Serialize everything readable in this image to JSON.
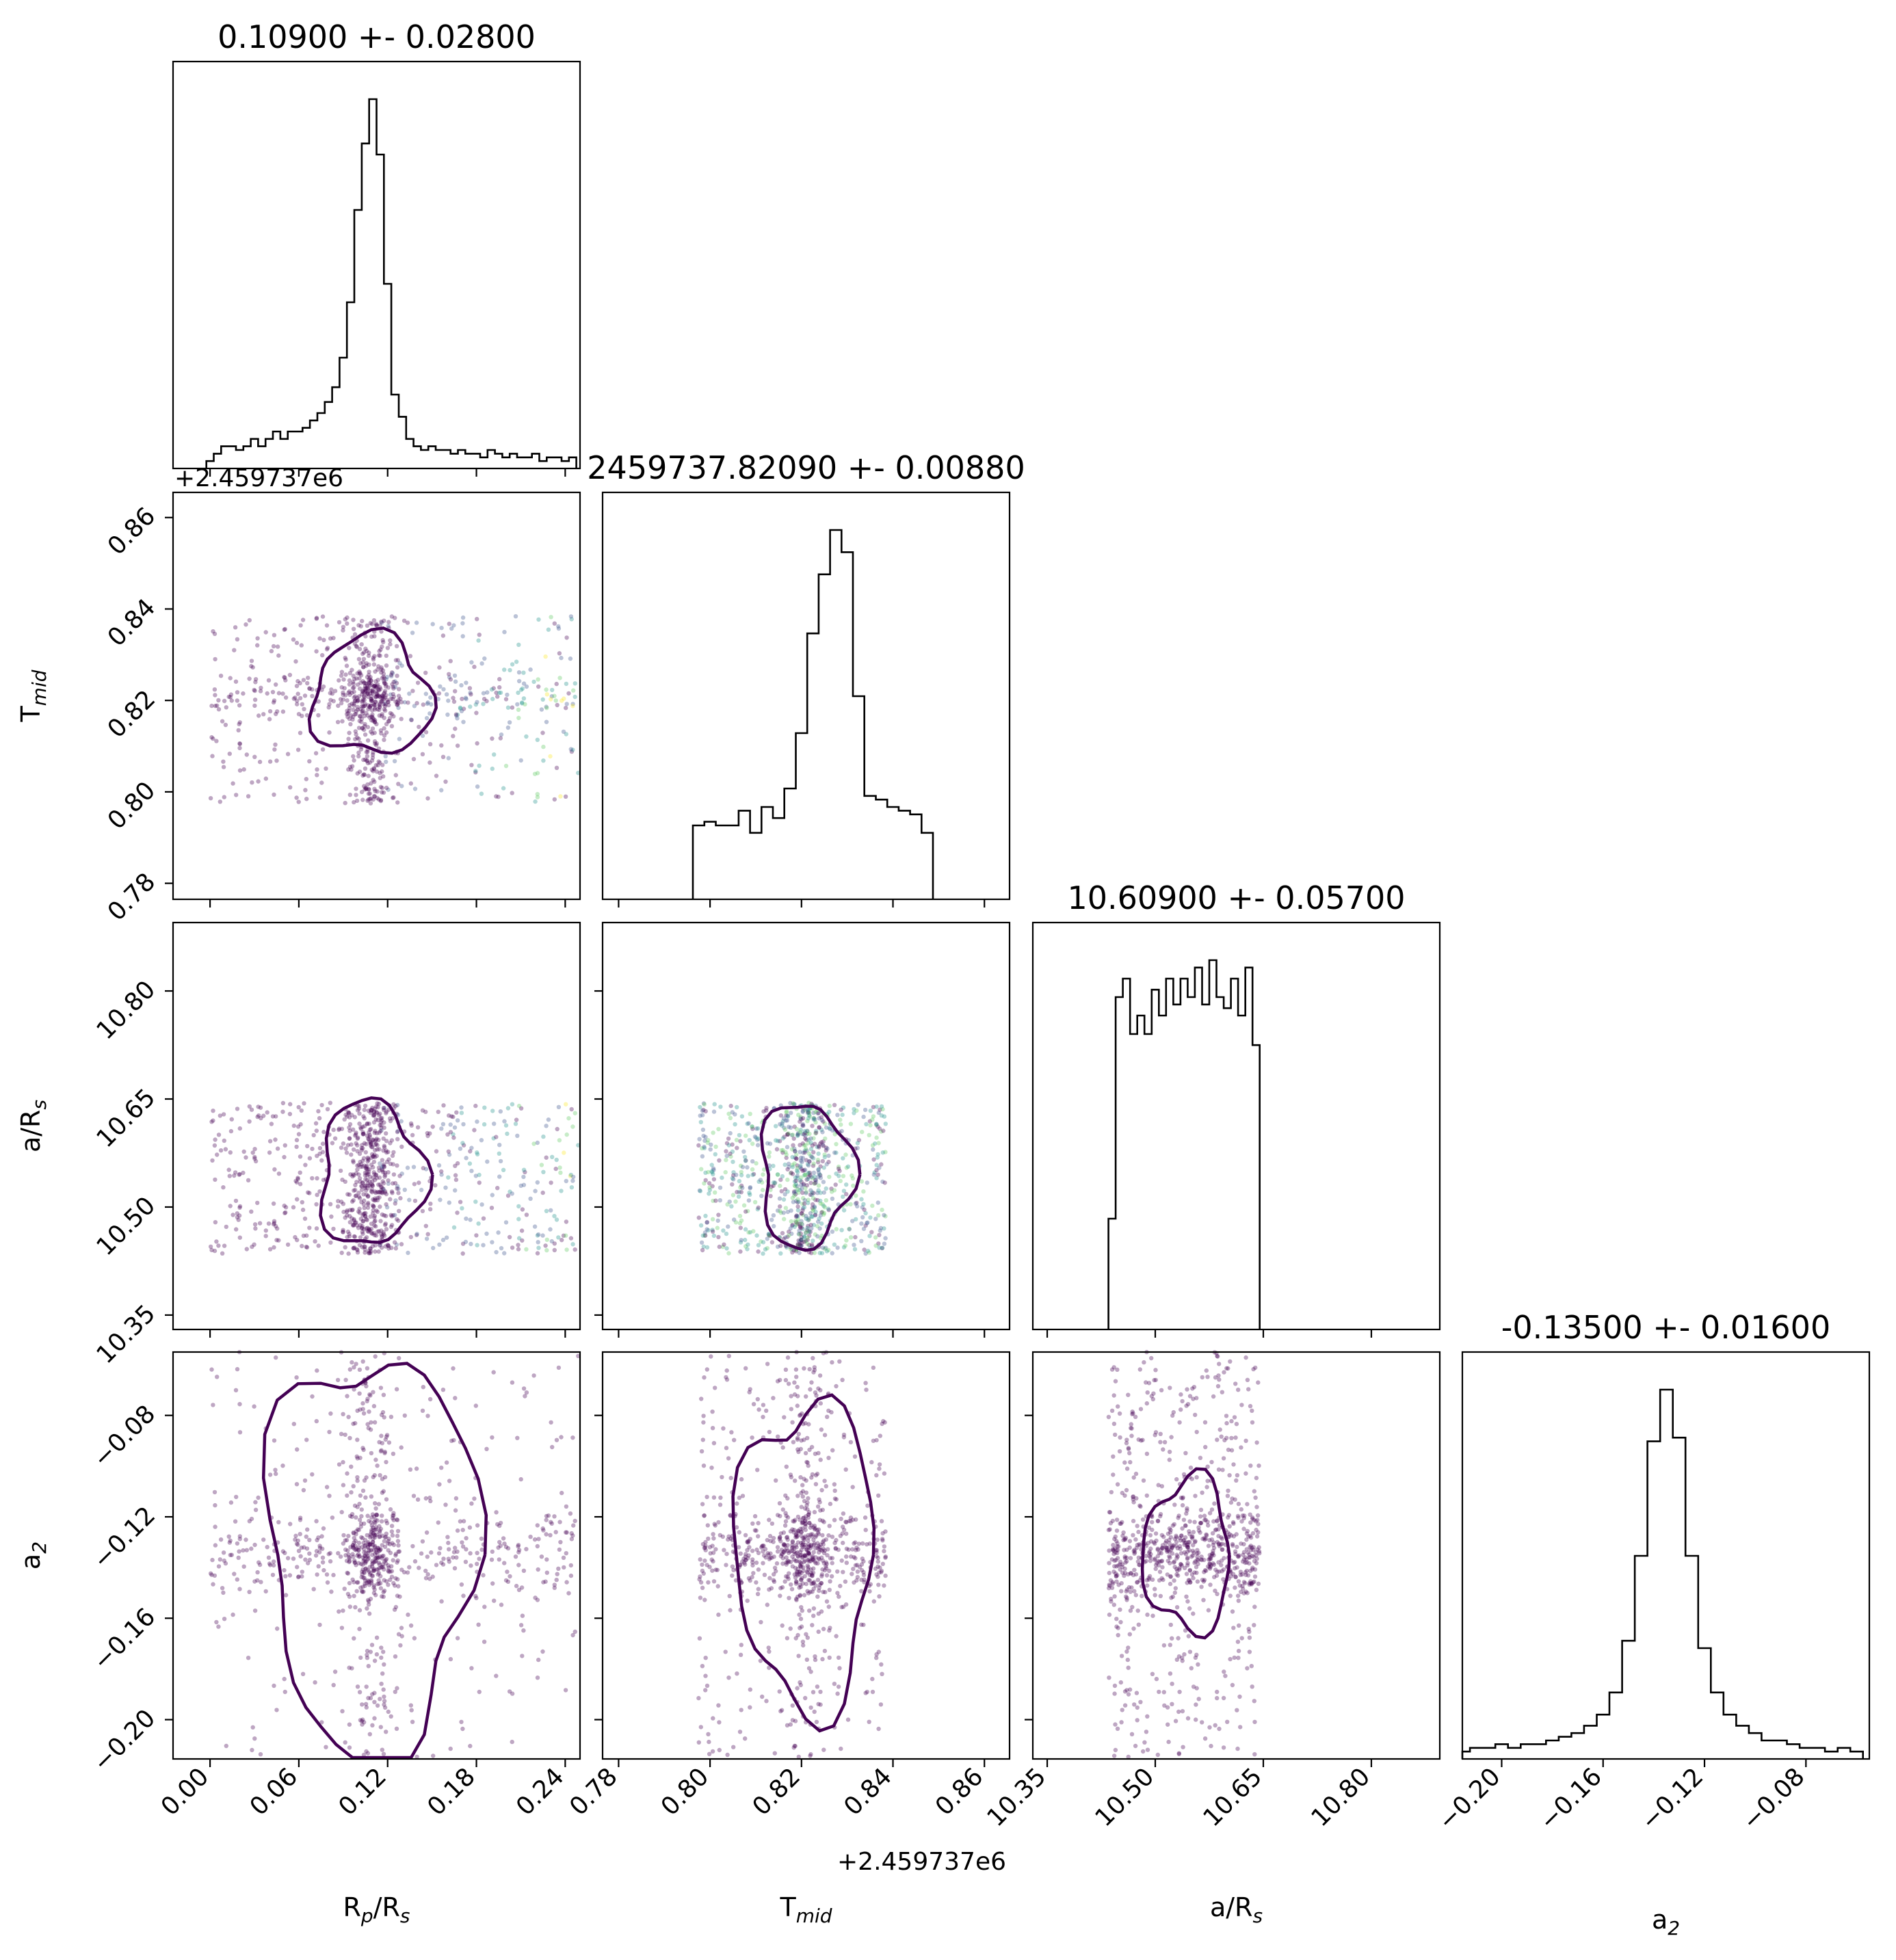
{
  "chart_data": {
    "type": "corner",
    "description_source": "corner plot of MCMC posterior samples",
    "parameters": [
      {
        "name": "R_p/R_s",
        "label_main": "R",
        "label_sub": "p",
        "label_tail": "/R",
        "label_sub2": "s",
        "median": 0.109,
        "sigma": 0.028,
        "title": "0.10900 +- 0.02800",
        "range": [
          -0.025,
          0.25
        ],
        "ticks": [
          0.0,
          0.06,
          0.12,
          0.18,
          0.24
        ],
        "tick_labels": [
          "0.00",
          "0.06",
          "0.12",
          "0.18",
          "0.24"
        ]
      },
      {
        "name": "T_mid",
        "label_main": "T",
        "label_sub": "mid",
        "median": 2459737.8209,
        "sigma": 0.0088,
        "title": "2459737.82090 +- 0.00880",
        "offset_text": "+2.459737e6",
        "range": [
          0.7765,
          0.8655
        ],
        "ticks": [
          0.78,
          0.8,
          0.82,
          0.84,
          0.86
        ],
        "tick_labels": [
          "0.78",
          "0.80",
          "0.82",
          "0.84",
          "0.86"
        ]
      },
      {
        "name": "a/R_s",
        "label_main": "a/R",
        "label_sub": "s",
        "median": 10.609,
        "sigma": 0.057,
        "title": "10.60900 +- 0.05700",
        "range": [
          10.33,
          10.895
        ],
        "ticks": [
          10.35,
          10.5,
          10.65,
          10.8
        ],
        "tick_labels": [
          "10.35",
          "10.50",
          "10.65",
          "10.80"
        ]
      },
      {
        "name": "a_2",
        "label_main": "a",
        "label_sub": "2",
        "median": -0.135,
        "sigma": 0.016,
        "title": "-0.13500 +- 0.01600",
        "range": [
          -0.2155,
          -0.055
        ],
        "ticks": [
          -0.2,
          -0.16,
          -0.12,
          -0.08
        ],
        "tick_labels": [
          "−0.20",
          "−0.16",
          "−0.12",
          "−0.08"
        ]
      }
    ],
    "offset_label_row1": "+2.459737e6",
    "histograms": {
      "R_p/R_s": [
        [
          0.0,
          0.02
        ],
        [
          0.005,
          0.04
        ],
        [
          0.01,
          0.06
        ],
        [
          0.015,
          0.06
        ],
        [
          0.02,
          0.05
        ],
        [
          0.025,
          0.06
        ],
        [
          0.03,
          0.08
        ],
        [
          0.035,
          0.06
        ],
        [
          0.04,
          0.08
        ],
        [
          0.045,
          0.1
        ],
        [
          0.05,
          0.08
        ],
        [
          0.055,
          0.1
        ],
        [
          0.06,
          0.1
        ],
        [
          0.065,
          0.11
        ],
        [
          0.07,
          0.13
        ],
        [
          0.075,
          0.15
        ],
        [
          0.08,
          0.18
        ],
        [
          0.085,
          0.22
        ],
        [
          0.09,
          0.3
        ],
        [
          0.095,
          0.45
        ],
        [
          0.1,
          0.7
        ],
        [
          0.105,
          0.88
        ],
        [
          0.11,
          1.0
        ],
        [
          0.115,
          0.85
        ],
        [
          0.12,
          0.5
        ],
        [
          0.125,
          0.2
        ],
        [
          0.13,
          0.14
        ],
        [
          0.135,
          0.08
        ],
        [
          0.14,
          0.06
        ],
        [
          0.145,
          0.05
        ],
        [
          0.15,
          0.06
        ],
        [
          0.155,
          0.05
        ],
        [
          0.16,
          0.05
        ],
        [
          0.165,
          0.04
        ],
        [
          0.17,
          0.05
        ],
        [
          0.175,
          0.04
        ],
        [
          0.18,
          0.04
        ],
        [
          0.185,
          0.03
        ],
        [
          0.19,
          0.05
        ],
        [
          0.195,
          0.04
        ],
        [
          0.2,
          0.03
        ],
        [
          0.205,
          0.04
        ],
        [
          0.21,
          0.03
        ],
        [
          0.215,
          0.03
        ],
        [
          0.22,
          0.04
        ],
        [
          0.225,
          0.02
        ],
        [
          0.23,
          0.03
        ],
        [
          0.235,
          0.03
        ],
        [
          0.24,
          0.02
        ],
        [
          0.245,
          0.03
        ]
      ],
      "T_mid": [
        [
          0.7975,
          0.2
        ],
        [
          0.8,
          0.21
        ],
        [
          0.8025,
          0.2
        ],
        [
          0.805,
          0.2
        ],
        [
          0.8075,
          0.24
        ],
        [
          0.81,
          0.18
        ],
        [
          0.8125,
          0.25
        ],
        [
          0.815,
          0.22
        ],
        [
          0.8175,
          0.3
        ],
        [
          0.82,
          0.45
        ],
        [
          0.8225,
          0.72
        ],
        [
          0.825,
          0.88
        ],
        [
          0.8275,
          1.0
        ],
        [
          0.83,
          0.94
        ],
        [
          0.8325,
          0.55
        ],
        [
          0.835,
          0.28
        ],
        [
          0.8375,
          0.27
        ],
        [
          0.84,
          0.25
        ],
        [
          0.8425,
          0.24
        ],
        [
          0.845,
          0.23
        ],
        [
          0.8475,
          0.18
        ]
      ],
      "a/R_s": [
        [
          10.44,
          0.3
        ],
        [
          10.45,
          0.9
        ],
        [
          10.46,
          0.95
        ],
        [
          10.47,
          0.8
        ],
        [
          10.48,
          0.85
        ],
        [
          10.49,
          0.8
        ],
        [
          10.5,
          0.92
        ],
        [
          10.51,
          0.85
        ],
        [
          10.52,
          0.95
        ],
        [
          10.53,
          0.88
        ],
        [
          10.54,
          0.95
        ],
        [
          10.55,
          0.9
        ],
        [
          10.56,
          0.98
        ],
        [
          10.57,
          0.88
        ],
        [
          10.58,
          1.0
        ],
        [
          10.59,
          0.9
        ],
        [
          10.6,
          0.87
        ],
        [
          10.61,
          0.95
        ],
        [
          10.62,
          0.85
        ],
        [
          10.63,
          0.98
        ],
        [
          10.64,
          0.77
        ]
      ],
      "a_2": [
        [
          -0.215,
          0.02
        ],
        [
          -0.21,
          0.03
        ],
        [
          -0.205,
          0.03
        ],
        [
          -0.2,
          0.04
        ],
        [
          -0.195,
          0.03
        ],
        [
          -0.19,
          0.04
        ],
        [
          -0.185,
          0.04
        ],
        [
          -0.18,
          0.05
        ],
        [
          -0.175,
          0.06
        ],
        [
          -0.17,
          0.07
        ],
        [
          -0.165,
          0.09
        ],
        [
          -0.16,
          0.12
        ],
        [
          -0.155,
          0.18
        ],
        [
          -0.15,
          0.32
        ],
        [
          -0.145,
          0.55
        ],
        [
          -0.14,
          0.86
        ],
        [
          -0.135,
          1.0
        ],
        [
          -0.13,
          0.87
        ],
        [
          -0.125,
          0.55
        ],
        [
          -0.12,
          0.3
        ],
        [
          -0.115,
          0.18
        ],
        [
          -0.11,
          0.12
        ],
        [
          -0.105,
          0.09
        ],
        [
          -0.1,
          0.07
        ],
        [
          -0.095,
          0.05
        ],
        [
          -0.09,
          0.05
        ],
        [
          -0.085,
          0.04
        ],
        [
          -0.08,
          0.03
        ],
        [
          -0.075,
          0.03
        ],
        [
          -0.07,
          0.02
        ],
        [
          -0.065,
          0.03
        ],
        [
          -0.06,
          0.02
        ]
      ]
    },
    "scatter_colors": [
      "#440154",
      "#3b528b",
      "#21918c",
      "#5ec962",
      "#fde725"
    ],
    "contour_color": "#440154"
  }
}
